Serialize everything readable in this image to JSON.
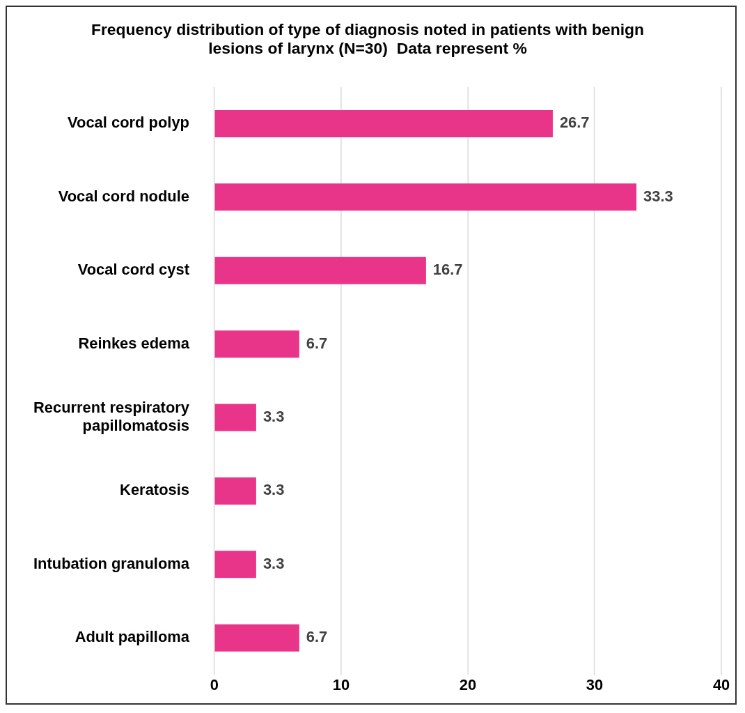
{
  "chart_data": {
    "type": "bar",
    "orientation": "horizontal",
    "title": "Frequency distribution of type of diagnosis noted in patients with benign lesions of larynx (N=30)  Data represent %",
    "categories": [
      "Vocal cord polyp",
      "Vocal cord nodule",
      "Vocal cord cyst",
      "Reinkes edema",
      "Recurrent respiratory papillomatosis",
      "Keratosis",
      "Intubation granuloma",
      "Adult papilloma"
    ],
    "values": [
      26.7,
      33.3,
      16.7,
      6.7,
      3.3,
      3.3,
      3.3,
      6.7
    ],
    "color": "#e8358a",
    "xlim": [
      0,
      40
    ],
    "xticks": [
      0,
      10,
      20,
      30,
      40
    ],
    "grid": "x",
    "data_labels": true,
    "legend": false
  }
}
